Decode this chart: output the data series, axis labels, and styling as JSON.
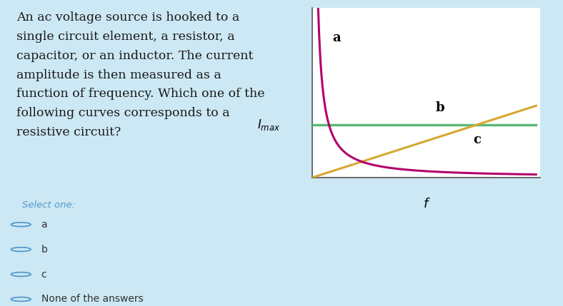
{
  "background_color": "#cce8f4",
  "chart_bg": "#ffffff",
  "title_text": "An ac voltage source is hooked to a\nsingle circuit element, a resistor, a\ncapacitor, or an inductor. The current\namplitude is then measured as a\nfunction of frequency. Which one of the\nfollowing curves corresponds to a\nresistive circuit?",
  "title_color": "#1a1a1a",
  "curve_a_color": "#b3006b",
  "curve_b_color": "#5cb87a",
  "curve_c_color": "#d4a830",
  "select_one": "Select one:",
  "options": [
    "a",
    "b",
    "c",
    "None of the answers"
  ],
  "option_color": "#5599cc",
  "label_a": "a",
  "label_b": "b",
  "label_c": "c",
  "label_f": "f",
  "label_imax": "I_{max}"
}
